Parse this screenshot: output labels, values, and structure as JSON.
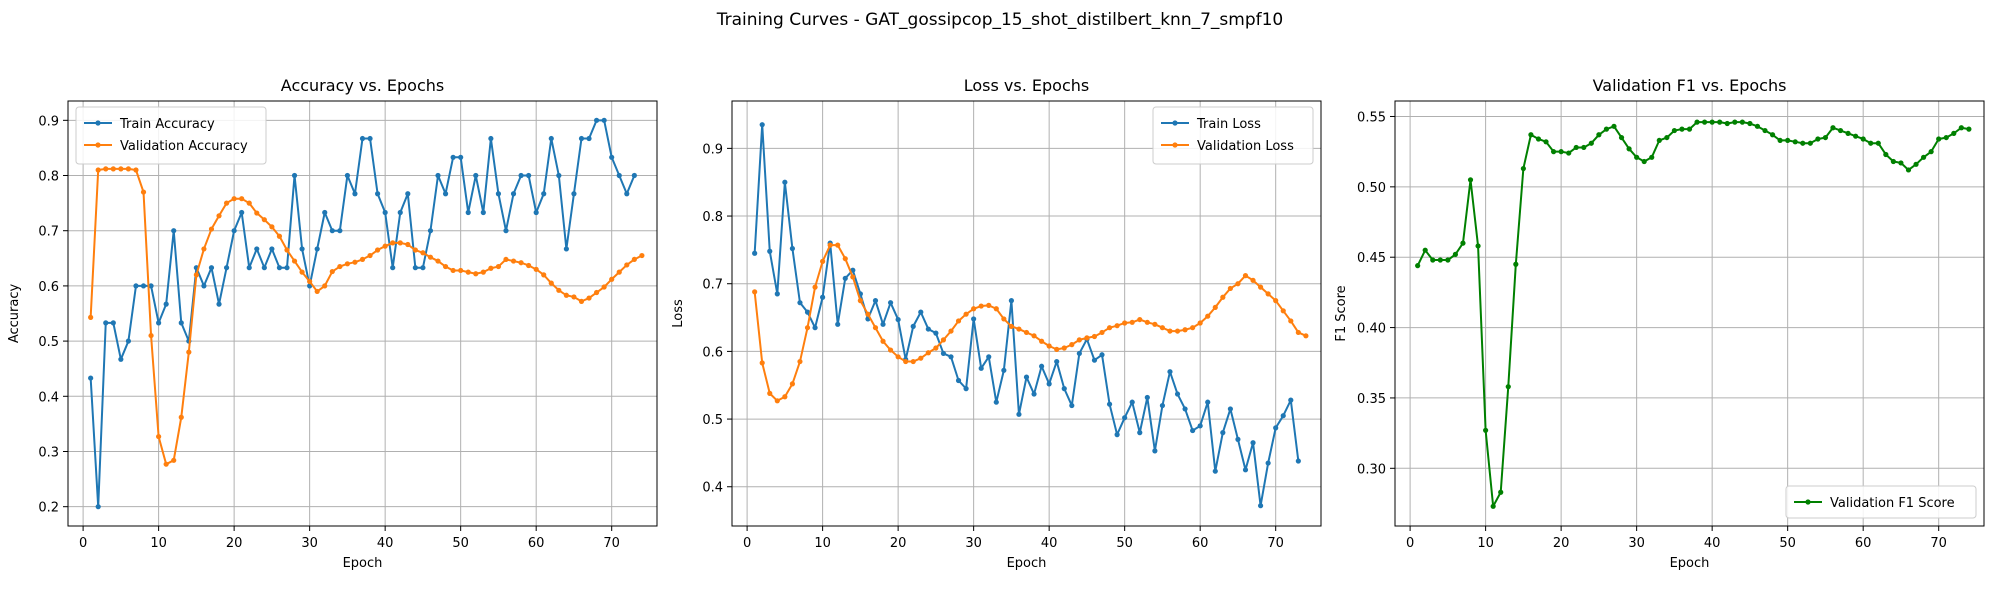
{
  "suptitle": "Training Curves - GAT_gossipcop_15_shot_distilbert_knn_7_smpf10",
  "colors": {
    "blue": "#1f77b4",
    "orange": "#ff7f0e",
    "green": "#008000",
    "grid": "#b0b0b0"
  },
  "chart_data": [
    {
      "type": "line",
      "title": "Accuracy vs. Epochs",
      "xlabel": "Epoch",
      "ylabel": "Accuracy",
      "xlim": [
        -2,
        76
      ],
      "ylim": [
        0.165,
        0.935
      ],
      "xticks": [
        0,
        10,
        20,
        30,
        40,
        50,
        60,
        70
      ],
      "yticks": [
        0.2,
        0.3,
        0.4,
        0.5,
        0.6,
        0.7,
        0.8,
        0.9
      ],
      "legend": "upper-left",
      "grid": true,
      "series": [
        {
          "name": "Train Accuracy",
          "color": "#1f77b4",
          "values": [
            0.433,
            0.2,
            0.533,
            0.533,
            0.467,
            0.5,
            0.6,
            0.6,
            0.6,
            0.533,
            0.567,
            0.7,
            0.533,
            0.5,
            0.633,
            0.6,
            0.633,
            0.567,
            0.633,
            0.7,
            0.733,
            0.633,
            0.667,
            0.633,
            0.667,
            0.633,
            0.633,
            0.8,
            0.667,
            0.6,
            0.667,
            0.733,
            0.7,
            0.7,
            0.8,
            0.767,
            0.867,
            0.867,
            0.767,
            0.733,
            0.633,
            0.733,
            0.767,
            0.633,
            0.633,
            0.7,
            0.8,
            0.767,
            0.833,
            0.833,
            0.733,
            0.8,
            0.733,
            0.867,
            0.767,
            0.7,
            0.767,
            0.8,
            0.8,
            0.733,
            0.767,
            0.867,
            0.8,
            0.667,
            0.767,
            0.867,
            0.867,
            0.9,
            0.9,
            0.833,
            0.8,
            0.767,
            0.8
          ]
        },
        {
          "name": "Validation Accuracy",
          "color": "#ff7f0e",
          "values": [
            0.543,
            0.81,
            0.812,
            0.812,
            0.812,
            0.812,
            0.81,
            0.77,
            0.51,
            0.327,
            0.277,
            0.284,
            0.362,
            0.48,
            0.62,
            0.667,
            0.703,
            0.727,
            0.75,
            0.758,
            0.758,
            0.75,
            0.732,
            0.72,
            0.707,
            0.69,
            0.665,
            0.645,
            0.625,
            0.608,
            0.59,
            0.6,
            0.626,
            0.635,
            0.64,
            0.643,
            0.648,
            0.655,
            0.665,
            0.672,
            0.678,
            0.678,
            0.675,
            0.665,
            0.66,
            0.652,
            0.645,
            0.635,
            0.628,
            0.628,
            0.625,
            0.622,
            0.625,
            0.632,
            0.635,
            0.648,
            0.645,
            0.642,
            0.637,
            0.63,
            0.62,
            0.605,
            0.592,
            0.583,
            0.58,
            0.572,
            0.578,
            0.588,
            0.598,
            0.612,
            0.625,
            0.638,
            0.648,
            0.655
          ]
        }
      ]
    },
    {
      "type": "line",
      "title": "Loss vs. Epochs",
      "xlabel": "Epoch",
      "ylabel": "Loss",
      "xlim": [
        -2,
        76
      ],
      "ylim": [
        0.342,
        0.97
      ],
      "xticks": [
        0,
        10,
        20,
        30,
        40,
        50,
        60,
        70
      ],
      "yticks": [
        0.4,
        0.5,
        0.6,
        0.7,
        0.8,
        0.9
      ],
      "legend": "upper-right",
      "grid": true,
      "series": [
        {
          "name": "Train Loss",
          "color": "#1f77b4",
          "values": [
            0.745,
            0.935,
            0.748,
            0.685,
            0.85,
            0.752,
            0.672,
            0.658,
            0.635,
            0.68,
            0.76,
            0.64,
            0.708,
            0.72,
            0.685,
            0.648,
            0.675,
            0.64,
            0.672,
            0.647,
            0.588,
            0.637,
            0.658,
            0.633,
            0.627,
            0.597,
            0.592,
            0.557,
            0.545,
            0.648,
            0.575,
            0.592,
            0.525,
            0.572,
            0.675,
            0.507,
            0.562,
            0.537,
            0.578,
            0.552,
            0.585,
            0.545,
            0.52,
            0.597,
            0.618,
            0.587,
            0.595,
            0.522,
            0.477,
            0.502,
            0.525,
            0.48,
            0.532,
            0.453,
            0.52,
            0.57,
            0.537,
            0.515,
            0.483,
            0.49,
            0.525,
            0.423,
            0.48,
            0.515,
            0.47,
            0.425,
            0.465,
            0.372,
            0.435,
            0.487,
            0.505,
            0.528,
            0.438
          ]
        },
        {
          "name": "Validation Loss",
          "color": "#ff7f0e",
          "values": [
            0.688,
            0.583,
            0.538,
            0.527,
            0.533,
            0.552,
            0.585,
            0.635,
            0.695,
            0.733,
            0.757,
            0.757,
            0.737,
            0.71,
            0.675,
            0.655,
            0.635,
            0.615,
            0.602,
            0.592,
            0.585,
            0.585,
            0.59,
            0.598,
            0.605,
            0.617,
            0.63,
            0.645,
            0.655,
            0.663,
            0.667,
            0.668,
            0.663,
            0.648,
            0.637,
            0.633,
            0.628,
            0.623,
            0.615,
            0.608,
            0.603,
            0.605,
            0.61,
            0.617,
            0.62,
            0.622,
            0.628,
            0.635,
            0.638,
            0.642,
            0.643,
            0.647,
            0.643,
            0.64,
            0.635,
            0.63,
            0.63,
            0.632,
            0.635,
            0.642,
            0.652,
            0.665,
            0.68,
            0.693,
            0.7,
            0.712,
            0.705,
            0.695,
            0.685,
            0.675,
            0.66,
            0.645,
            0.628,
            0.623
          ]
        }
      ]
    },
    {
      "type": "line",
      "title": "Validation F1 vs. Epochs",
      "xlabel": "Epoch",
      "ylabel": "F1 Score",
      "xlim": [
        -2,
        76
      ],
      "ylim": [
        0.259,
        0.561
      ],
      "xticks": [
        0,
        10,
        20,
        30,
        40,
        50,
        60,
        70
      ],
      "yticks": [
        0.3,
        0.35,
        0.4,
        0.45,
        0.5,
        0.55
      ],
      "legend": "lower-right",
      "grid": true,
      "series": [
        {
          "name": "Validation F1 Score",
          "color": "#008000",
          "values": [
            0.444,
            0.455,
            0.448,
            0.448,
            0.448,
            0.452,
            0.46,
            0.505,
            0.458,
            0.327,
            0.273,
            0.283,
            0.358,
            0.445,
            0.513,
            0.537,
            0.534,
            0.532,
            0.525,
            0.525,
            0.524,
            0.528,
            0.528,
            0.531,
            0.537,
            0.541,
            0.543,
            0.535,
            0.527,
            0.521,
            0.518,
            0.521,
            0.533,
            0.535,
            0.54,
            0.541,
            0.541,
            0.546,
            0.546,
            0.546,
            0.546,
            0.545,
            0.546,
            0.546,
            0.545,
            0.543,
            0.54,
            0.537,
            0.533,
            0.533,
            0.532,
            0.531,
            0.531,
            0.534,
            0.535,
            0.542,
            0.54,
            0.538,
            0.536,
            0.534,
            0.531,
            0.531,
            0.523,
            0.518,
            0.517,
            0.512,
            0.516,
            0.521,
            0.525,
            0.534,
            0.535,
            0.538,
            0.542,
            0.541
          ]
        }
      ]
    }
  ]
}
